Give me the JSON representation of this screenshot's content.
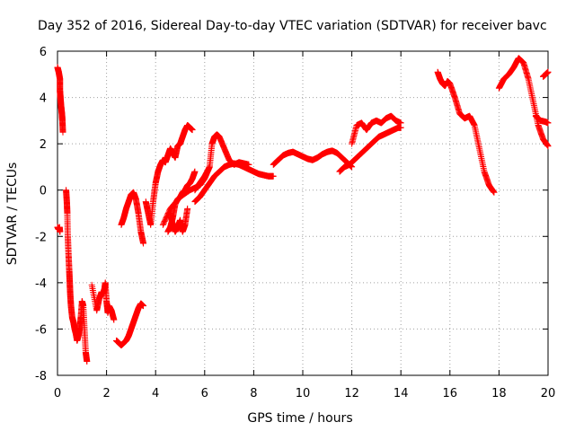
{
  "chart_data": {
    "type": "scatter",
    "title": "Day 352 of 2016, Sidereal Day-to-day VTEC variation (SDTVAR) for receiver bavc",
    "xlabel": "GPS time / hours",
    "ylabel": "SDTVAR / TECUs",
    "xlim": [
      0,
      20
    ],
    "ylim": [
      -8,
      6
    ],
    "x_ticks": [
      "0",
      "2",
      "4",
      "6",
      "8",
      "10",
      "12",
      "14",
      "16",
      "18",
      "20"
    ],
    "y_ticks": [
      "-8",
      "-6",
      "-4",
      "-2",
      "0",
      "2",
      "4",
      "6"
    ],
    "grid": true,
    "marker": "+",
    "color": "#ff0000",
    "series": [
      {
        "x": [
          0.0,
          0.05,
          0.1,
          0.1,
          0.12,
          0.15,
          0.18,
          0.2,
          0.22
        ],
        "y": [
          5.3,
          5.1,
          4.8,
          4.3,
          4.0,
          3.6,
          3.3,
          3.0,
          2.5
        ]
      },
      {
        "x": [
          0.0,
          0.05,
          0.08,
          0.1
        ],
        "y": [
          -1.6,
          -1.7,
          -1.6,
          -1.8
        ]
      },
      {
        "x": [
          0.35,
          0.38,
          0.4,
          0.42,
          0.45,
          0.48,
          0.5,
          0.52,
          0.55,
          0.6,
          0.65,
          0.7,
          0.75,
          0.8,
          0.85,
          0.9,
          0.95,
          1.0,
          1.05,
          1.1,
          1.15,
          1.2
        ],
        "y": [
          0.0,
          -0.5,
          -1.0,
          -2.0,
          -2.8,
          -3.5,
          -4.0,
          -4.5,
          -5.0,
          -5.5,
          -5.7,
          -6.0,
          -6.2,
          -6.5,
          -6.3,
          -6.0,
          -5.5,
          -4.8,
          -5.0,
          -6.0,
          -7.0,
          -7.4
        ]
      },
      {
        "x": [
          1.4,
          1.6,
          1.7,
          1.8,
          1.85,
          1.9,
          1.95,
          2.0,
          2.05,
          2.1,
          2.2,
          2.3
        ],
        "y": [
          -4.1,
          -5.2,
          -4.7,
          -4.4,
          -4.5,
          -4.4,
          -4.0,
          -4.8,
          -5.3,
          -5.0,
          -5.2,
          -5.6
        ]
      },
      {
        "x": [
          2.4,
          2.5,
          2.6,
          2.7,
          2.8,
          2.9,
          3.0,
          3.1,
          3.2,
          3.3,
          3.4,
          3.5
        ],
        "y": [
          -6.5,
          -6.6,
          -6.7,
          -6.6,
          -6.5,
          -6.3,
          -6.0,
          -5.7,
          -5.4,
          -5.1,
          -4.9,
          -5.0
        ]
      },
      {
        "x": [
          2.6,
          2.7,
          2.8,
          2.9,
          3.0,
          3.1,
          3.2,
          3.3,
          3.4,
          3.5
        ],
        "y": [
          -1.5,
          -1.2,
          -0.8,
          -0.5,
          -0.2,
          -0.1,
          -0.4,
          -1.0,
          -1.8,
          -2.3
        ]
      },
      {
        "x": [
          3.6,
          3.7,
          3.8,
          3.9,
          4.0,
          4.1,
          4.2,
          4.3,
          4.4,
          4.5,
          4.6,
          4.7,
          4.8,
          4.9,
          5.0,
          5.1,
          5.2,
          5.3,
          5.4,
          5.5
        ],
        "y": [
          -0.5,
          -1.0,
          -1.5,
          -0.5,
          0.3,
          0.8,
          1.1,
          1.3,
          1.2,
          1.5,
          1.8,
          1.6,
          1.4,
          1.9,
          2.0,
          2.3,
          2.6,
          2.8,
          2.7,
          2.6
        ]
      },
      {
        "x": [
          4.5,
          4.6,
          4.7,
          4.8,
          4.9,
          5.0,
          5.1,
          5.2,
          5.3,
          5.4,
          5.5,
          5.6
        ],
        "y": [
          -1.8,
          -1.6,
          -1.2,
          -0.6,
          -0.4,
          -0.3,
          -0.1,
          0.0,
          0.2,
          0.3,
          0.5,
          0.8
        ]
      },
      {
        "x": [
          4.6,
          4.7,
          4.8,
          4.9,
          5.0,
          5.1,
          5.2,
          5.3
        ],
        "y": [
          -1.0,
          -1.5,
          -1.8,
          -1.6,
          -1.3,
          -1.8,
          -1.5,
          -0.8
        ]
      },
      {
        "x": [
          5.6,
          5.8,
          6.0,
          6.2,
          6.4,
          6.6,
          6.8,
          7.0,
          7.2,
          7.4,
          7.6,
          7.8,
          8.0,
          8.2,
          8.4,
          8.6,
          8.8
        ],
        "y": [
          -0.5,
          -0.3,
          0.0,
          0.3,
          0.6,
          0.8,
          1.0,
          1.1,
          1.15,
          1.1,
          1.0,
          0.9,
          0.8,
          0.7,
          0.65,
          0.6,
          0.6
        ]
      },
      {
        "x": [
          5.6,
          5.8,
          6.0,
          6.2,
          6.3,
          6.4,
          6.5,
          6.6,
          6.8,
          7.0,
          7.2,
          7.4,
          7.6,
          7.8
        ],
        "y": [
          0.0,
          0.3,
          0.6,
          1.0,
          2.0,
          2.3,
          2.4,
          2.3,
          1.8,
          1.3,
          1.1,
          1.2,
          1.15,
          1.1
        ]
      },
      {
        "x": [
          4.3,
          4.6,
          5.0,
          5.4,
          5.8,
          6.0,
          6.2
        ],
        "y": [
          -1.5,
          -0.8,
          -0.3,
          0.0,
          0.2,
          0.5,
          1.0
        ]
      },
      {
        "x": [
          8.8,
          9.0,
          9.2,
          9.4,
          9.6,
          9.8,
          10.0,
          10.2,
          10.4,
          10.6,
          10.8,
          11.0,
          11.2,
          11.4,
          11.6,
          11.8,
          12.0
        ],
        "y": [
          1.1,
          1.3,
          1.5,
          1.6,
          1.65,
          1.55,
          1.45,
          1.35,
          1.3,
          1.4,
          1.55,
          1.65,
          1.7,
          1.6,
          1.4,
          1.2,
          1.0
        ]
      },
      {
        "x": [
          11.5,
          11.7,
          11.9,
          12.1,
          12.3,
          12.5,
          12.7,
          12.9,
          13.1,
          13.3,
          13.5,
          13.7,
          13.9,
          14.0
        ],
        "y": [
          0.8,
          1.0,
          1.1,
          1.3,
          1.5,
          1.7,
          1.9,
          2.1,
          2.3,
          2.4,
          2.5,
          2.6,
          2.7,
          2.7
        ]
      },
      {
        "x": [
          12.0,
          12.2,
          12.4,
          12.6,
          12.8,
          13.0,
          13.2,
          13.4,
          13.6,
          13.8,
          14.0
        ],
        "y": [
          2.0,
          2.8,
          2.9,
          2.6,
          2.9,
          3.0,
          2.9,
          3.1,
          3.2,
          3.0,
          2.9
        ]
      },
      {
        "x": [
          15.5,
          15.6,
          15.7,
          15.8,
          15.9,
          16.0,
          16.2,
          16.4,
          16.6,
          16.8,
          17.0,
          17.2,
          17.4,
          17.6,
          17.8
        ],
        "y": [
          5.1,
          4.8,
          4.6,
          4.5,
          4.7,
          4.6,
          4.0,
          3.3,
          3.1,
          3.2,
          2.8,
          1.8,
          0.8,
          0.2,
          -0.1
        ]
      },
      {
        "x": [
          18.0,
          18.2,
          18.4,
          18.6,
          18.8,
          19.0,
          19.2,
          19.4,
          19.6,
          19.8,
          20.0
        ],
        "y": [
          4.4,
          4.8,
          5.0,
          5.3,
          5.7,
          5.5,
          4.8,
          3.8,
          2.8,
          2.2,
          1.9
        ]
      },
      {
        "x": [
          19.8,
          19.9,
          20.0
        ],
        "y": [
          4.9,
          5.0,
          5.1
        ]
      },
      {
        "x": [
          19.5,
          19.7,
          19.9,
          20.0
        ],
        "y": [
          3.2,
          3.0,
          2.95,
          2.9
        ]
      }
    ]
  }
}
